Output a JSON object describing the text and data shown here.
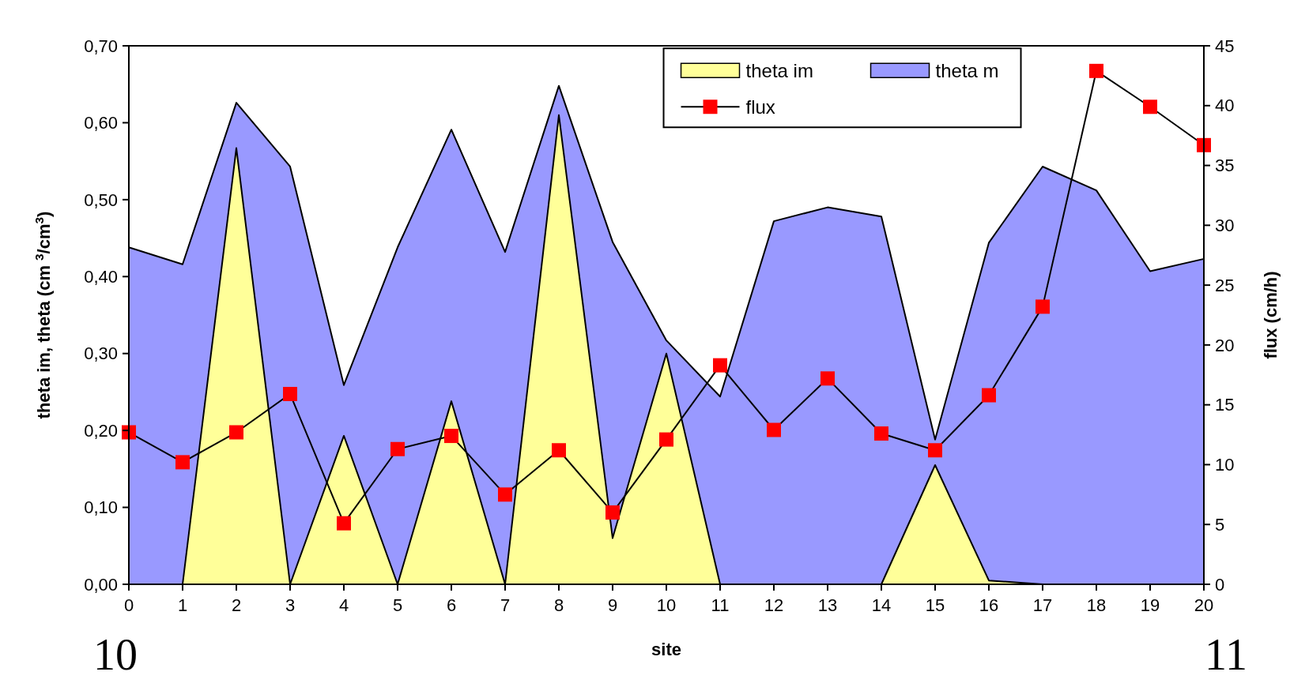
{
  "chart_data": {
    "type": "area",
    "xlabel": "site",
    "ylabel": "theta im, theta (cm $^{3}$/cm$^{3}$)",
    "y2label": "flux (cm/h)",
    "x": [
      0,
      1,
      2,
      3,
      4,
      5,
      6,
      7,
      8,
      9,
      10,
      11,
      12,
      13,
      14,
      15,
      16,
      17,
      18,
      19,
      20
    ],
    "xlim": [
      0,
      20
    ],
    "xticks": [
      0,
      1,
      2,
      3,
      4,
      5,
      6,
      7,
      8,
      9,
      10,
      11,
      12,
      13,
      14,
      15,
      16,
      17,
      18,
      19,
      20
    ],
    "ylim": [
      0,
      0.7
    ],
    "yticks": [
      {
        "value": 0,
        "label": "0,00"
      },
      {
        "value": 0.1,
        "label": "0,10"
      },
      {
        "value": 0.2,
        "label": "0,20"
      },
      {
        "value": 0.3,
        "label": "0,30"
      },
      {
        "value": 0.4,
        "label": "0,40"
      },
      {
        "value": 0.5,
        "label": "0,50"
      },
      {
        "value": 0.6,
        "label": "0,60"
      },
      {
        "value": 0.7,
        "label": "0,70"
      }
    ],
    "y2lim": [
      0,
      45
    ],
    "y2ticks": [
      0,
      5,
      10,
      15,
      20,
      25,
      30,
      35,
      40,
      45
    ],
    "series": [
      {
        "name": "theta im",
        "type": "area",
        "color": "#ffff99",
        "values": [
          0,
          0,
          0.567,
          0,
          0.193,
          0,
          0.238,
          0,
          0.61,
          0.06,
          0.3,
          0,
          0,
          0,
          0,
          0.155,
          0.005,
          0,
          0,
          0,
          0
        ]
      },
      {
        "name": "theta m",
        "type": "area",
        "color": "#9999ff",
        "values": [
          0.438,
          0.416,
          0.626,
          0.543,
          0.259,
          0.438,
          0.591,
          0.432,
          0.648,
          0.445,
          0.317,
          0.244,
          0.472,
          0.49,
          0.478,
          0.188,
          0.444,
          0.543,
          0.512,
          0.407,
          0.423
        ]
      },
      {
        "name": "flux",
        "type": "line",
        "axis": "y2",
        "color": "#ff0000",
        "marker": "square",
        "values": [
          12.7,
          10.2,
          12.7,
          15.9,
          5.1,
          11.3,
          12.4,
          7.5,
          11.2,
          6.0,
          12.1,
          18.3,
          12.9,
          17.2,
          12.6,
          11.2,
          15.8,
          23.2,
          42.9,
          39.9,
          36.7
        ]
      }
    ],
    "legend": "top right",
    "grid": false,
    "annotations": [
      "10",
      "11"
    ]
  }
}
